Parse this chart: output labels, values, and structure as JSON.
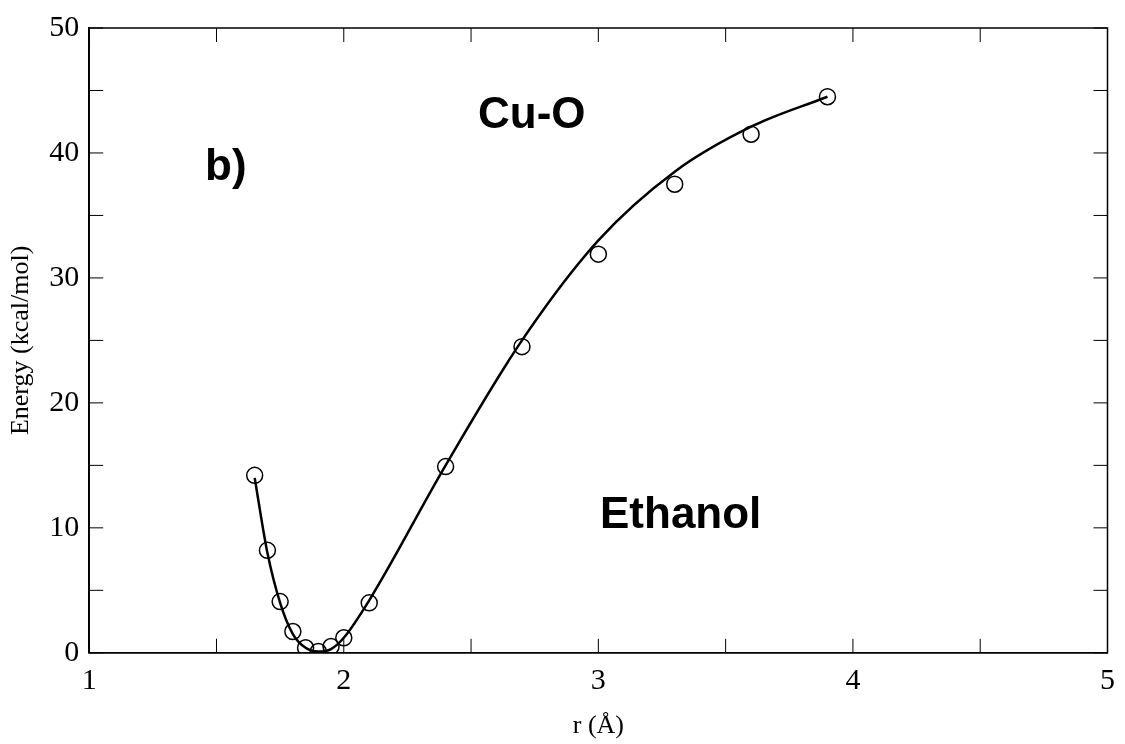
{
  "chart_data": {
    "type": "scatter",
    "xlabel": "r (Å)",
    "ylabel": "Energy (kcal/mol)",
    "annotations": [
      "b)",
      "Cu-O",
      "Ethanol"
    ],
    "xlim": [
      1,
      5
    ],
    "ylim": [
      0,
      50
    ],
    "xticks": [
      1,
      {
        "value": 1.5,
        "label": null
      },
      2,
      {
        "value": 2.5,
        "label": null
      },
      3,
      {
        "value": 3.5,
        "label": null
      },
      4,
      {
        "value": 4.5,
        "label": null
      },
      5
    ],
    "yticks": [
      0,
      {
        "value": 5,
        "label": null
      },
      10,
      {
        "value": 15,
        "label": null
      },
      20,
      {
        "value": 25,
        "label": null
      },
      30,
      {
        "value": 35,
        "label": null
      },
      40,
      {
        "value": 45,
        "label": null
      },
      50
    ],
    "grid": false,
    "legend": false,
    "series": [
      {
        "type": "scatter",
        "marker": "circle",
        "color": "#000000",
        "x": [
          1.65,
          1.7,
          1.75,
          1.8,
          1.85,
          1.9,
          1.95,
          2.0,
          2.1,
          2.4,
          2.7,
          3.0,
          3.3,
          3.6,
          3.9
        ],
        "values": [
          14.2,
          8.2,
          4.1,
          1.7,
          0.4,
          0.1,
          0.5,
          1.2,
          4.0,
          14.9,
          24.5,
          31.9,
          37.5,
          41.5,
          44.5
        ]
      },
      {
        "type": "line",
        "marker": "none",
        "line_style": "solid",
        "color": "#000000",
        "x": [
          1.65,
          1.7,
          1.75,
          1.8,
          1.85,
          1.9,
          1.95,
          2.0,
          2.1,
          2.4,
          2.7,
          3.0,
          3.3,
          3.6,
          3.9
        ],
        "values": [
          14.0,
          8.0,
          4.0,
          1.5,
          0.4,
          0.1,
          0.3,
          1.2,
          4.2,
          15.0,
          25.0,
          33.0,
          38.5,
          42.1,
          44.5
        ]
      }
    ]
  }
}
